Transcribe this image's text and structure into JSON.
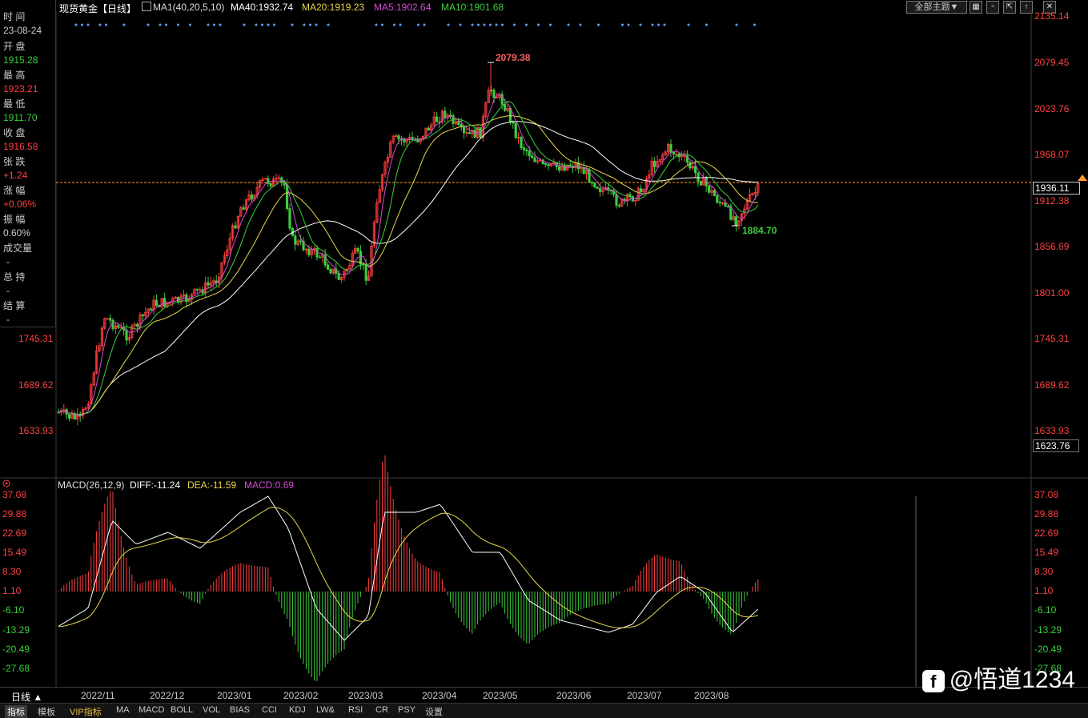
{
  "header": {
    "instrument": "现货黄金【日线】",
    "ma_def": "MA1(40,20,5,10)",
    "ma40": "MA40:1932.74",
    "ma20": "MA20:1919.23",
    "ma5": "MA5:1902.64",
    "ma10": "MA10:1901.68",
    "theme_button": "全部主题▼",
    "colors": {
      "ma40": "#ffffff",
      "ma20": "#e8d84a",
      "ma5": "#d44bd4",
      "ma10": "#3ccd3c",
      "up": "#ff4040",
      "down": "#3ccd3c",
      "dotted": "#ff9c2a"
    }
  },
  "info_panel": {
    "time_label": "时 间",
    "date": "23-08-24",
    "open_label": "开 盘",
    "open": "1915.28",
    "high_label": "最 高",
    "high": "1923.21",
    "low_label": "最 低",
    "low": "1911.70",
    "close_label": "收 盘",
    "close": "1916.58",
    "change_label": "张 跌",
    "change": "+1.24",
    "pct_label": "涨 幅",
    "pct": "+0.06%",
    "amp_label": "振 幅",
    "amp": "0.60%",
    "vol_label": "成交量",
    "vol": "-",
    "oi_label": "总 持",
    "oi": "-",
    "settle_label": "结 算",
    "settle": "-"
  },
  "price_axis": {
    "ticks": [
      "2135.14",
      "2079.45",
      "2023.76",
      "1968.07",
      "1912.38",
      "1856.69",
      "1801.00",
      "1745.31",
      "1689.62",
      "1633.93"
    ],
    "left_ticks": [
      "1745.31",
      "1689.62",
      "1633.93"
    ],
    "current": "1936.11",
    "bottom": "1623.76",
    "max_label": "2079.38",
    "min_label": "1884.70"
  },
  "macd": {
    "title": "MACD(26,12,9)",
    "diff": "DIFF:-11.24",
    "dea": "DEA:-11.59",
    "macd": "MACD:0.69",
    "ticks": [
      "37.08",
      "29.88",
      "22.69",
      "15.49",
      "8.30",
      "1.10",
      "-6.10",
      "-13.29",
      "-20.49",
      "-27.68"
    ]
  },
  "time_axis": {
    "period": "日线 ▲",
    "months": [
      "2022/11",
      "2022/12",
      "2023/01",
      "2023/02",
      "2023/03",
      "2023/04",
      "2023/05",
      "2023/06",
      "2023/07",
      "2023/08"
    ]
  },
  "toolbar": {
    "items": [
      "指标",
      "模板",
      "VIP指标",
      "MA",
      "MACD",
      "BOLL",
      "VOL",
      "BIAS",
      "CCI",
      "KDJ",
      "LW&",
      "RSI",
      "CR",
      "PSY",
      "设置"
    ]
  },
  "watermark": {
    "logo": "f",
    "text": "@悟道1234"
  }
}
